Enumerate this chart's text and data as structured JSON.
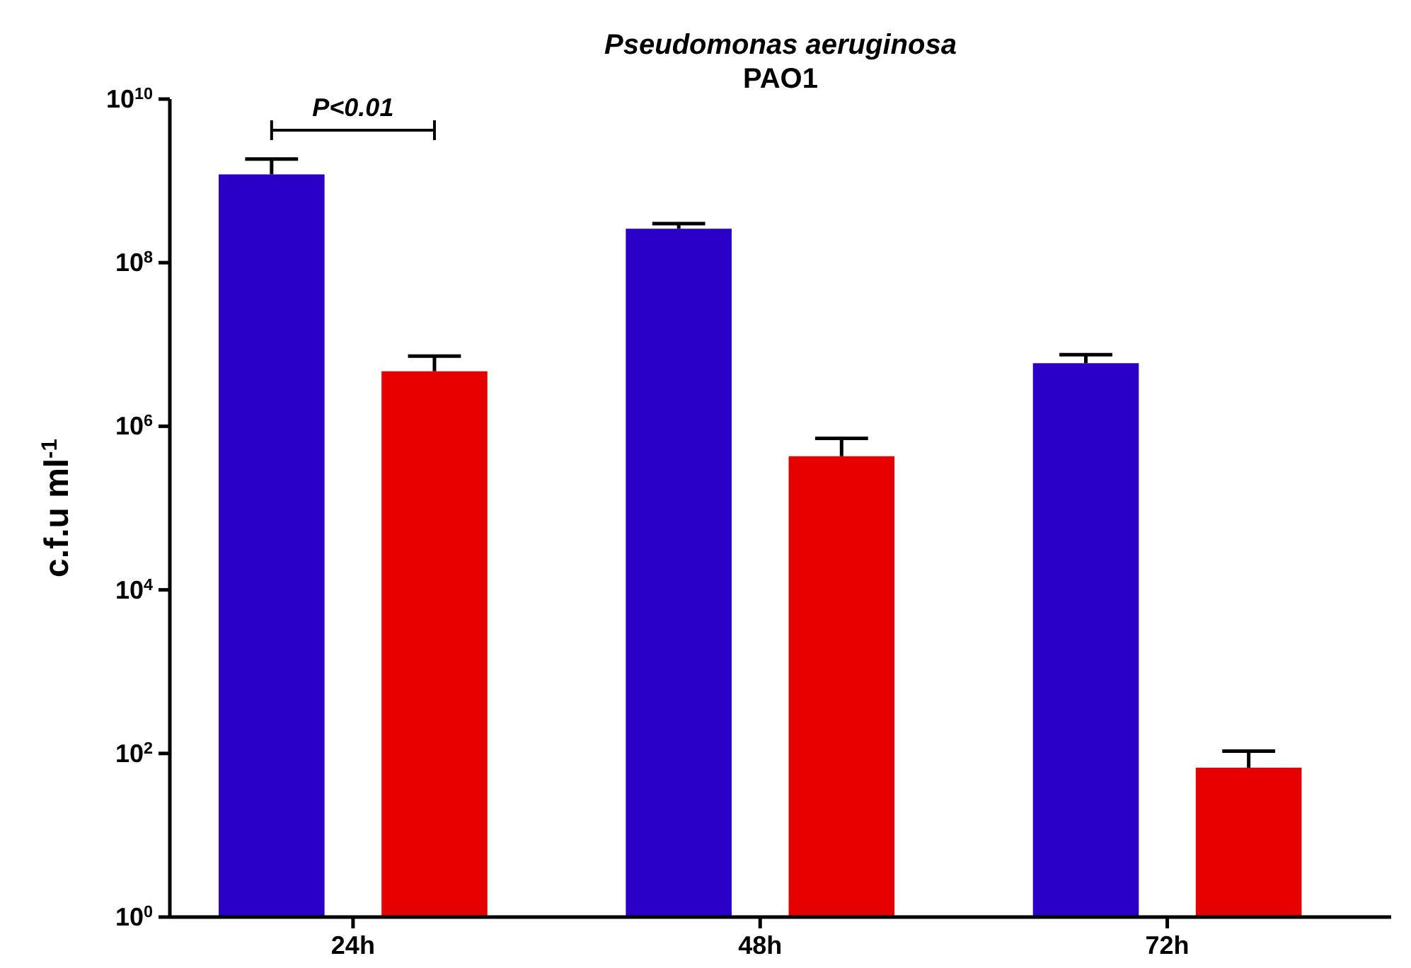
{
  "chart_data": {
    "type": "bar",
    "title": "Pseudomonas aeruginosa",
    "subtitle": "PAO1",
    "ylabel": "c.f.u ml$^{-1}$",
    "categories": [
      "24h",
      "48h",
      "72h"
    ],
    "series": [
      {
        "color": "#2a00c8",
        "values": [
          1200000000,
          260000000,
          5900000
        ],
        "errors": [
          [
            1200000000,
            1850000000
          ],
          [
            260000000,
            300000000
          ],
          [
            5900000,
            7500000
          ]
        ]
      },
      {
        "color": "#e60000",
        "values": [
          4700000,
          430000,
          67
        ],
        "errors": [
          [
            4700000,
            7200000
          ],
          [
            430000,
            710000
          ],
          [
            67,
            107
          ]
        ]
      }
    ],
    "log": true,
    "ylim": [
      1,
      10000000000
    ],
    "yticks": [
      {
        "value": 1,
        "label": "10$^{0}$"
      },
      {
        "value": 100,
        "label": "10$^{2}$"
      },
      {
        "value": 10000,
        "label": "10$^{4}$"
      },
      {
        "value": 1000000,
        "label": "10$^{6}$"
      },
      {
        "value": 100000000,
        "label": "10$^{8}$"
      },
      {
        "value": 10000000000,
        "label": "10$^{10}$"
      }
    ],
    "annotations": [
      "P<0.01"
    ],
    "grid": false
  }
}
